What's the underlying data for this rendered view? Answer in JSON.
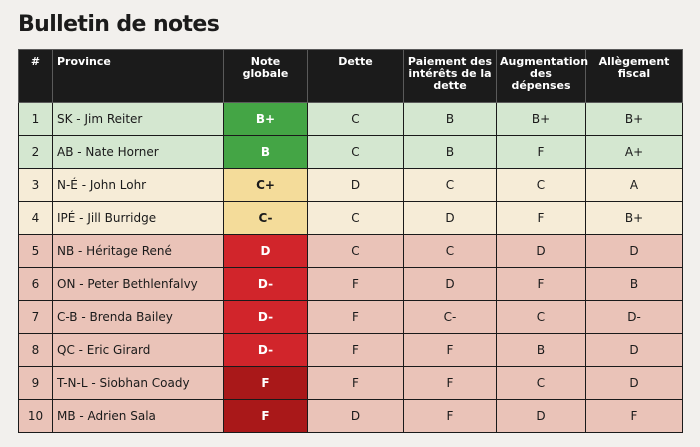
{
  "title": "Bulletin de notes",
  "colors": {
    "header_bg": "#1b1b1b",
    "row_good": "#d4e7d0",
    "row_mid": "#f6ecd7",
    "row_bad": "#eac3b8",
    "grade_green": "#44a545",
    "grade_yellow": "#f4dc9a",
    "grade_red": "#d1252b",
    "grade_darkred": "#a91819"
  },
  "headers": [
    "#",
    "Province",
    "Note globale",
    "Dette",
    "Paiement des intérêts de la dette",
    "Augmentation des dépenses",
    "Allègement fiscal"
  ],
  "rows": [
    {
      "num": "1",
      "province": "SK - Jim Reiter",
      "overall": "B+",
      "debt": "C",
      "interest": "B",
      "spending": "B+",
      "tax": "B+"
    },
    {
      "num": "2",
      "province": "AB - Nate Horner",
      "overall": "B",
      "debt": "C",
      "interest": "B",
      "spending": "F",
      "tax": "A+"
    },
    {
      "num": "3",
      "province": "N-É - John Lohr",
      "overall": "C+",
      "debt": "D",
      "interest": "C",
      "spending": "C",
      "tax": "A"
    },
    {
      "num": "4",
      "province": "IPÉ - Jill Burridge",
      "overall": "C-",
      "debt": "C",
      "interest": "D",
      "spending": "F",
      "tax": "B+"
    },
    {
      "num": "5",
      "province": "NB - Héritage René",
      "overall": "D",
      "debt": "C",
      "interest": "C",
      "spending": "D",
      "tax": "D"
    },
    {
      "num": "6",
      "province": "ON - Peter Bethlenfalvy",
      "overall": "D-",
      "debt": "F",
      "interest": "D",
      "spending": "F",
      "tax": "B"
    },
    {
      "num": "7",
      "province": "C-B - Brenda Bailey",
      "overall": "D-",
      "debt": "F",
      "interest": "C-",
      "spending": "C",
      "tax": "D-"
    },
    {
      "num": "8",
      "province": "QC - Eric Girard",
      "overall": "D-",
      "debt": "F",
      "interest": "F",
      "spending": "B",
      "tax": "D"
    },
    {
      "num": "9",
      "province": "T-N-L - Siobhan Coady",
      "overall": "F",
      "debt": "F",
      "interest": "F",
      "spending": "C",
      "tax": "D"
    },
    {
      "num": "10",
      "province": "MB - Adrien Sala",
      "overall": "F",
      "debt": "D",
      "interest": "F",
      "spending": "D",
      "tax": "F"
    }
  ]
}
